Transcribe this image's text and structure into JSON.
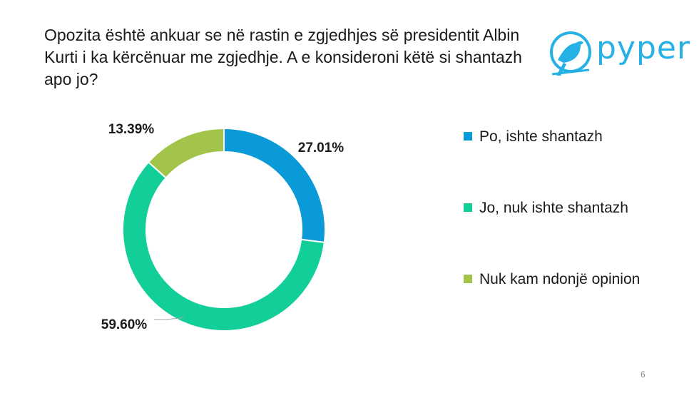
{
  "slide": {
    "title": "Opozita është ankuar se në rastin e zgjedhjes së presidentit Albin Kurti i ka kërcënuar me zgjedhje. A e konsideroni këtë si shantazh apo jo?",
    "brand": "pyper",
    "page_number": "6"
  },
  "colors": {
    "po": "#0a9ad8",
    "jo": "#12cf9a",
    "nuk": "#a3c44a",
    "brand": "#25b1e6"
  },
  "icons": {
    "logo": "bird-logo-icon"
  },
  "chart_data": {
    "type": "pie",
    "variant": "donut",
    "categories": [
      "Po, ishte shantazh",
      "Jo, nuk ishte shantazh",
      "Nuk kam ndonjë opinion"
    ],
    "values": [
      27.01,
      59.6,
      13.39
    ],
    "data_labels": [
      "27.01%",
      "59.60%",
      "13.39%"
    ],
    "legend_position": "right"
  }
}
